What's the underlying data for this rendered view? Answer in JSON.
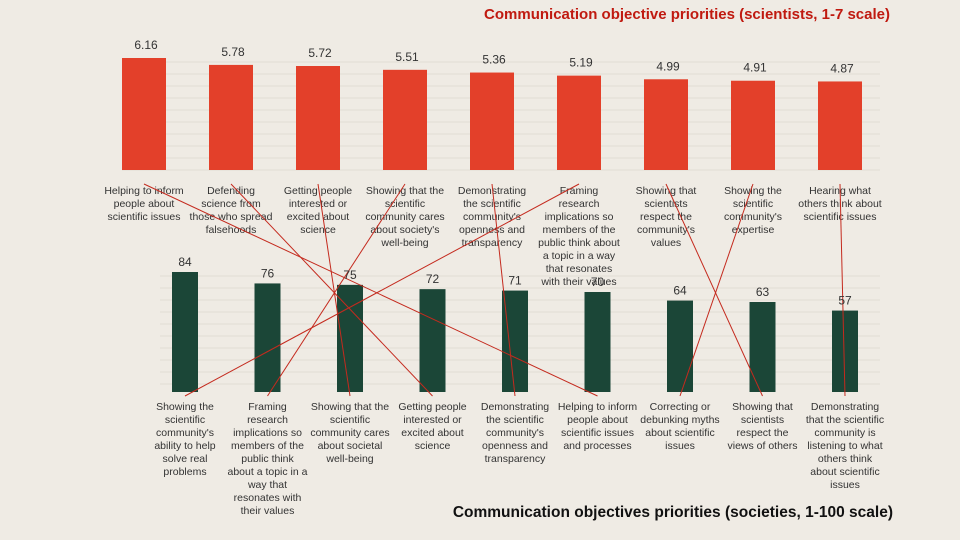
{
  "colors": {
    "background": "#efebe4",
    "top_bar": "#e3402a",
    "bottom_bar": "#1b4637",
    "connector": "#c42a1e",
    "grid": "#e2dcd3"
  },
  "chart_data": [
    {
      "type": "bar",
      "title": "Communication objective priorities (scientists, 1-7 scale)",
      "categories": [
        [
          "Helping to inform",
          "people about",
          "scientific issues"
        ],
        [
          "Defending",
          "science from",
          "those who spread",
          "falsehoods"
        ],
        [
          "Getting people",
          "interested or",
          "excited about",
          "science"
        ],
        [
          "Showing that the",
          "scientific",
          "community cares",
          "about society's",
          "well-being"
        ],
        [
          "Demonstrating",
          "the scientific",
          "community's",
          "openness and",
          "transparency"
        ],
        [
          "Framing",
          "research",
          "implications so",
          "members of the",
          "public think about",
          "a topic in a way",
          "that resonates",
          "with their values"
        ],
        [
          "Showing that",
          "scientists",
          "respect the",
          "community's",
          "values"
        ],
        [
          "Showing the",
          "scientific",
          "community's",
          "expertise"
        ],
        [
          "Hearing what",
          "others think about",
          "scientific issues"
        ]
      ],
      "values": [
        6.16,
        5.78,
        5.72,
        5.51,
        5.36,
        5.19,
        4.99,
        4.91,
        4.87
      ],
      "value_labels": [
        "6.16",
        "5.78",
        "5.72",
        "5.51",
        "5.36",
        "5.19",
        "4.99",
        "4.91",
        "4.87"
      ]
    },
    {
      "type": "bar",
      "title": "Communication objectives priorities (societies, 1-100 scale)",
      "categories": [
        [
          "Showing the",
          "scientific",
          "community's",
          "ability to help",
          "solve real",
          "problems"
        ],
        [
          "Framing",
          "research",
          "implications so",
          "members of the",
          "public think",
          "about a topic in a",
          "way that",
          "resonates with",
          "their values"
        ],
        [
          "Showing that the",
          "scientific",
          "community cares",
          "about societal",
          "well-being"
        ],
        [
          "Getting people",
          "interested or",
          "excited about",
          "science"
        ],
        [
          "Demonstrating",
          "the scientific",
          "community's",
          "openness and",
          "transparency"
        ],
        [
          "Helping to inform",
          "people about",
          "scientific issues",
          "and processes"
        ],
        [
          "Correcting or",
          "debunking myths",
          "about scientific",
          "issues"
        ],
        [
          "Showing that",
          "scientists",
          "respect the",
          "views of others"
        ],
        [
          "Demonstrating",
          "that the scientific",
          "community is",
          "listening to what",
          "others think",
          "about scientific",
          "issues"
        ]
      ],
      "values": [
        84,
        76,
        75,
        72,
        71,
        70,
        64,
        63,
        57
      ],
      "value_labels": [
        "84",
        "76",
        "75",
        "72",
        "71",
        "70",
        "64",
        "63",
        "57"
      ]
    }
  ],
  "connectors": [
    [
      0,
      5
    ],
    [
      1,
      3
    ],
    [
      2,
      2
    ],
    [
      3,
      1
    ],
    [
      4,
      4
    ],
    [
      5,
      0
    ],
    [
      6,
      7
    ],
    [
      7,
      6
    ],
    [
      8,
      8
    ]
  ]
}
